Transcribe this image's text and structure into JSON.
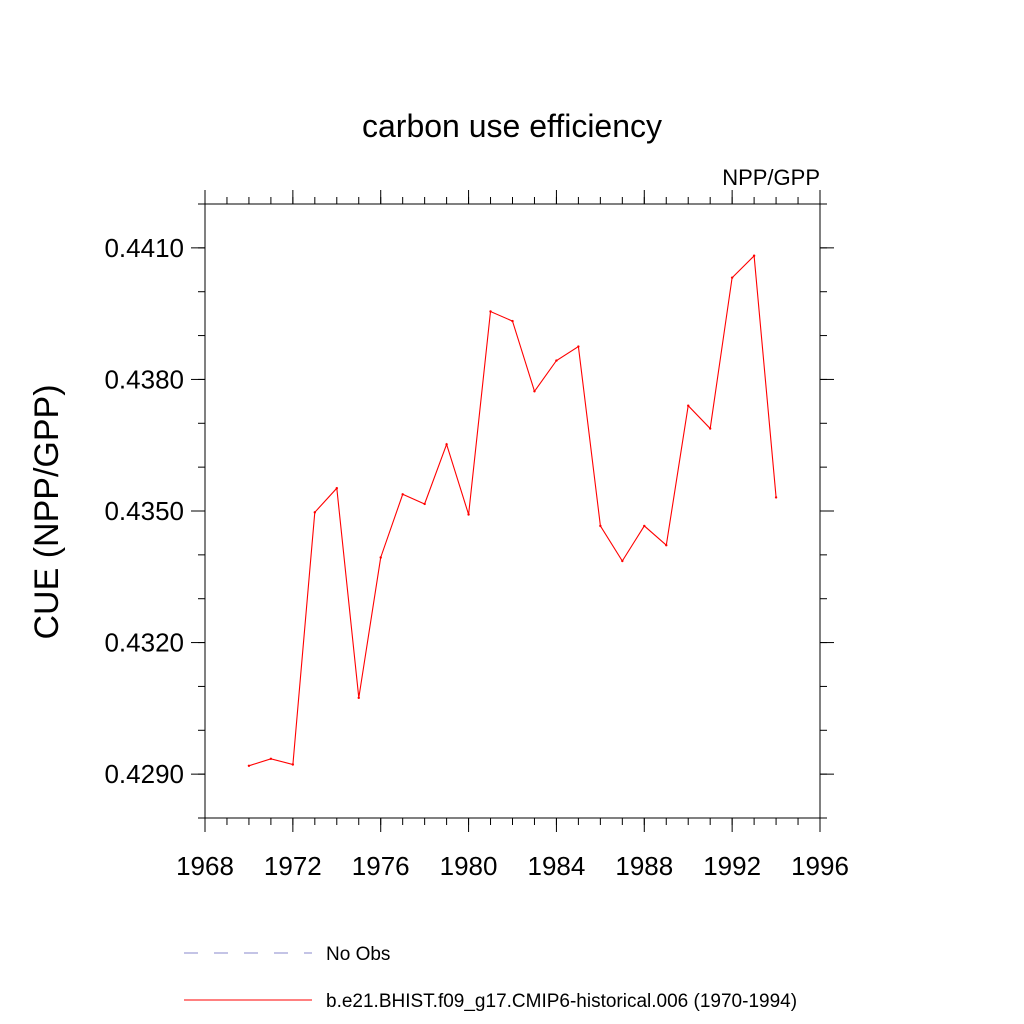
{
  "chart_data": {
    "type": "line",
    "title": "carbon use efficiency",
    "subtitle": "NPP/GPP",
    "xlabel": "",
    "ylabel": "CUE  (NPP/GPP)",
    "xlim": [
      1968,
      1996
    ],
    "ylim": [
      0.428,
      0.442
    ],
    "x_ticks": [
      "1968",
      "1972",
      "1976",
      "1980",
      "1984",
      "1988",
      "1992",
      "1996"
    ],
    "y_ticks": [
      "0.4290",
      "0.4320",
      "0.4350",
      "0.4380",
      "0.4410"
    ],
    "grid": false,
    "legend_position": "bottom",
    "legend": [
      {
        "label": "No Obs",
        "style": "dashed",
        "color": "#8888cc"
      },
      {
        "label": "b.e21.BHIST.f09_g17.CMIP6-historical.006 (1970-1994)",
        "style": "solid",
        "color": "#ff0000"
      }
    ],
    "series": [
      {
        "name": "b.e21.BHIST.f09_g17.CMIP6-historical.006 (1970-1994)",
        "color": "#ff0000",
        "x": [
          1970,
          1971,
          1972,
          1973,
          1974,
          1975,
          1976,
          1977,
          1978,
          1979,
          1980,
          1981,
          1982,
          1983,
          1984,
          1985,
          1986,
          1987,
          1988,
          1989,
          1990,
          1991,
          1992,
          1993,
          1994
        ],
        "y": [
          0.42919,
          0.42935,
          0.42922,
          0.43497,
          0.43552,
          0.43074,
          0.43394,
          0.43538,
          0.43516,
          0.43652,
          0.43492,
          0.43955,
          0.43933,
          0.43773,
          0.43843,
          0.43875,
          0.43466,
          0.43386,
          0.43466,
          0.43422,
          0.4374,
          0.43688,
          0.44032,
          0.44082,
          0.43531
        ]
      }
    ]
  }
}
